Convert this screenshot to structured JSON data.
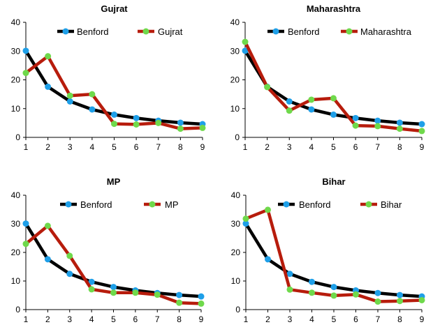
{
  "chart_data": [
    {
      "type": "line",
      "title": "Gujrat",
      "x": [
        1,
        2,
        3,
        4,
        5,
        6,
        7,
        8,
        9
      ],
      "ylim": [
        0,
        40
      ],
      "yticks": [
        0,
        10,
        20,
        30,
        40
      ],
      "grid": false,
      "legend": "top",
      "series": [
        {
          "name": "Benford",
          "line_color": "#000000",
          "marker_color": "#1E9FE8",
          "values": [
            30.1,
            17.6,
            12.5,
            9.7,
            7.9,
            6.7,
            5.8,
            5.1,
            4.6
          ]
        },
        {
          "name": "Gujrat",
          "line_color": "#B71C0C",
          "marker_color": "#6FD94B",
          "values": [
            22.4,
            28.2,
            14.5,
            15.0,
            4.7,
            4.5,
            5.0,
            3.0,
            3.3
          ]
        }
      ]
    },
    {
      "type": "line",
      "title": "Maharashtra",
      "x": [
        1,
        2,
        3,
        4,
        5,
        6,
        7,
        8,
        9
      ],
      "ylim": [
        0,
        40
      ],
      "yticks": [
        0,
        10,
        20,
        30,
        40
      ],
      "grid": false,
      "legend": "top",
      "series": [
        {
          "name": "Benford",
          "line_color": "#000000",
          "marker_color": "#1E9FE8",
          "values": [
            30.1,
            17.6,
            12.5,
            9.7,
            7.9,
            6.7,
            5.8,
            5.1,
            4.6
          ]
        },
        {
          "name": "Maharashtra",
          "line_color": "#B71C0C",
          "marker_color": "#6FD94B",
          "values": [
            33.2,
            17.5,
            9.3,
            13.1,
            13.6,
            4.1,
            3.9,
            3.0,
            2.2
          ]
        }
      ]
    },
    {
      "type": "line",
      "title": "MP",
      "x": [
        1,
        2,
        3,
        4,
        5,
        6,
        7,
        8,
        9
      ],
      "ylim": [
        0,
        40
      ],
      "yticks": [
        0,
        10,
        20,
        30,
        40
      ],
      "grid": false,
      "legend": "top",
      "series": [
        {
          "name": "Benford",
          "line_color": "#000000",
          "marker_color": "#1E9FE8",
          "values": [
            30.1,
            17.6,
            12.5,
            9.7,
            7.9,
            6.7,
            5.8,
            5.1,
            4.6
          ]
        },
        {
          "name": "MP",
          "line_color": "#B71C0C",
          "marker_color": "#6FD94B",
          "values": [
            23.0,
            29.3,
            18.8,
            7.1,
            5.9,
            5.9,
            5.2,
            2.4,
            2.1
          ]
        }
      ]
    },
    {
      "type": "line",
      "title": "Bihar",
      "x": [
        1,
        2,
        3,
        4,
        5,
        6,
        7,
        8,
        9
      ],
      "ylim": [
        0,
        40
      ],
      "yticks": [
        0,
        10,
        20,
        30,
        40
      ],
      "grid": false,
      "legend": "top",
      "series": [
        {
          "name": "Benford",
          "line_color": "#000000",
          "marker_color": "#1E9FE8",
          "values": [
            30.1,
            17.6,
            12.5,
            9.7,
            7.9,
            6.7,
            5.8,
            5.1,
            4.6
          ]
        },
        {
          "name": "Bihar",
          "line_color": "#B71C0C",
          "marker_color": "#6FD94B",
          "values": [
            31.8,
            34.9,
            7.0,
            5.9,
            4.9,
            5.3,
            2.8,
            3.0,
            3.3
          ]
        }
      ]
    }
  ]
}
